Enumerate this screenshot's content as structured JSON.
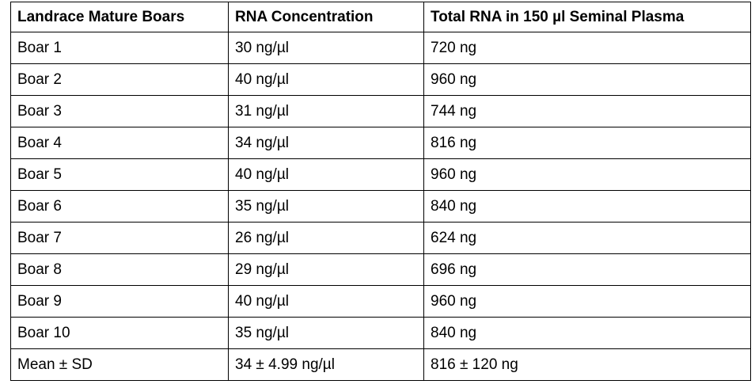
{
  "table": {
    "headers": [
      "Landrace Mature Boars",
      "RNA Concentration",
      "Total RNA in 150 µl Seminal Plasma"
    ],
    "rows": [
      [
        "Boar 1",
        "30 ng/µl",
        "720 ng"
      ],
      [
        "Boar 2",
        "40 ng/µl",
        "960 ng"
      ],
      [
        "Boar 3",
        "31 ng/µl",
        "744 ng"
      ],
      [
        "Boar 4",
        "34 ng/µl",
        "816 ng"
      ],
      [
        "Boar 5",
        "40 ng/µl",
        "960 ng"
      ],
      [
        "Boar 6",
        "35 ng/µl",
        "840 ng"
      ],
      [
        "Boar 7",
        "26 ng/µl",
        "624 ng"
      ],
      [
        "Boar 8",
        "29 ng/µl",
        "696 ng"
      ],
      [
        "Boar 9",
        "40 ng/µl",
        "960 ng"
      ],
      [
        "Boar 10",
        "35 ng/µl",
        "840 ng"
      ],
      [
        "Mean ± SD",
        "34 ± 4.99 ng/µl",
        "816 ± 120 ng"
      ]
    ]
  }
}
